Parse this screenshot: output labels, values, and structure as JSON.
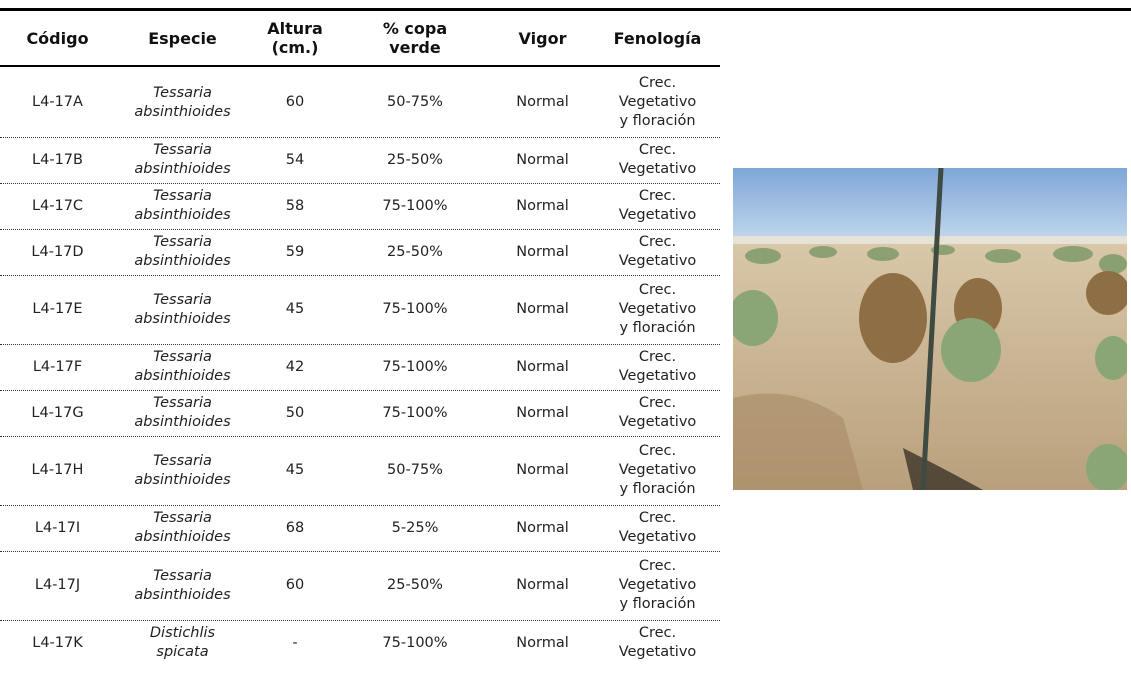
{
  "table": {
    "headers": [
      "Código",
      "Especie",
      "Altura\n(cm.)",
      "% copa\nverde",
      "Vigor",
      "Fenología"
    ],
    "rows": [
      [
        "L4-17A",
        "Tessaria\nabsinthioides",
        "60",
        "50-75%",
        "Normal",
        "Crec.\nVegetativo\ny floración"
      ],
      [
        "L4-17B",
        "Tessaria\nabsinthioides",
        "54",
        "25-50%",
        "Normal",
        "Crec.\nVegetativo"
      ],
      [
        "L4-17C",
        "Tessaria\nabsinthioides",
        "58",
        "75-100%",
        "Normal",
        "Crec.\nVegetativo"
      ],
      [
        "L4-17D",
        "Tessaria\nabsinthioides",
        "59",
        "25-50%",
        "Normal",
        "Crec.\nVegetativo"
      ],
      [
        "L4-17E",
        "Tessaria\nabsinthioides",
        "45",
        "75-100%",
        "Normal",
        "Crec.\nVegetativo\ny floración"
      ],
      [
        "L4-17F",
        "Tessaria\nabsinthioides",
        "42",
        "75-100%",
        "Normal",
        "Crec.\nVegetativo"
      ],
      [
        "L4-17G",
        "Tessaria\nabsinthioides",
        "50",
        "75-100%",
        "Normal",
        "Crec.\nVegetativo"
      ],
      [
        "L4-17H",
        "Tessaria\nabsinthioides",
        "45",
        "50-75%",
        "Normal",
        "Crec.\nVegetativo\ny floración"
      ],
      [
        "L4-17I",
        "Tessaria\nabsinthioides",
        "68",
        "5-25%",
        "Normal",
        "Crec.\nVegetativo"
      ],
      [
        "L4-17J",
        "Tessaria\nabsinthioides",
        "60",
        "25-50%",
        "Normal",
        "Crec.\nVegetativo\ny floración"
      ],
      [
        "L4-17K",
        "Distichlis\nspicata",
        "-",
        "75-100%",
        "Normal",
        "Crec.\nVegetativo"
      ]
    ]
  }
}
